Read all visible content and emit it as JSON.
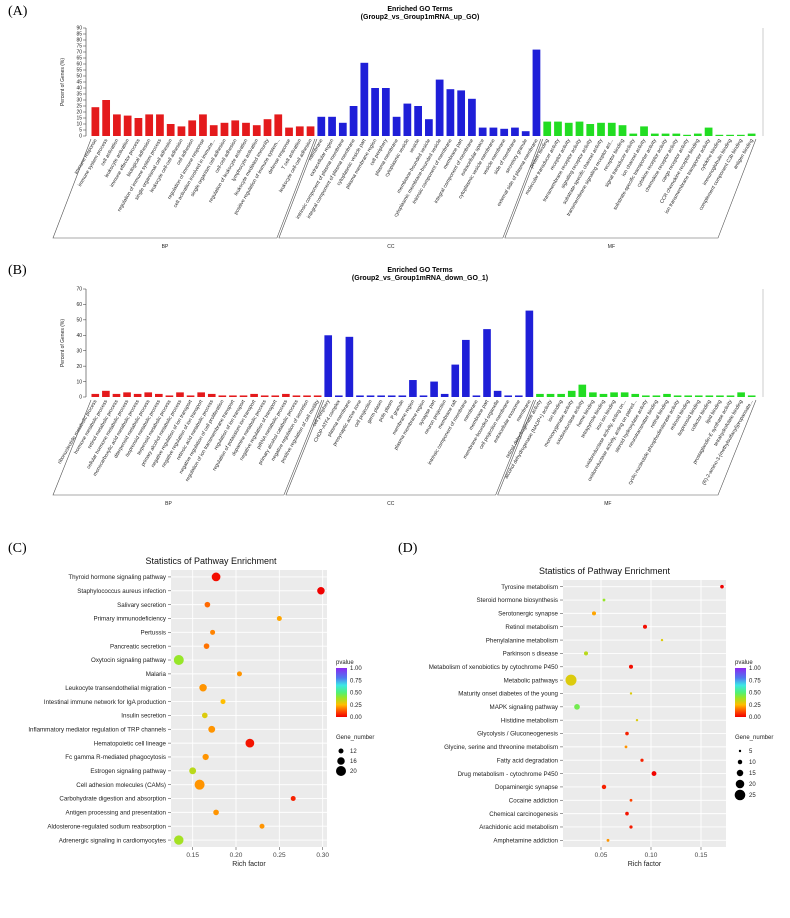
{
  "labels": {
    "a": "(A)",
    "b": "(B)",
    "c": "(C)",
    "d": "(D)"
  },
  "colors": {
    "BP": "#e41a1c",
    "CC": "#1f1fd8",
    "MF": "#22dd22"
  },
  "chart_data": [
    {
      "id": "A",
      "type": "bar",
      "title": "Enriched GO Terms",
      "subtitle": "(Group2_vs_Group1mRNA_up_GO)",
      "ylabel": "Percent of Genes (%)",
      "ylim": [
        0,
        90
      ],
      "yticks": [
        0,
        5,
        10,
        15,
        20,
        25,
        30,
        35,
        40,
        45,
        50,
        55,
        60,
        65,
        70,
        75,
        80,
        85,
        90
      ],
      "groups": [
        {
          "name": "BP",
          "categories": [
            "immune response",
            "immune system process",
            "cell activation",
            "leukocyte activation",
            "immune effector process",
            "biological adhesion",
            "regulation of immune system process",
            "single organismal cell adhesion",
            "leukocyte cell-cell adhesion",
            "cell adhesion",
            "regulation of immune response",
            "cell activation involved in immune...",
            "single organism cell adhesion",
            "cell-cell adhesion",
            "regulation of leukocyte activation",
            "lymphocyte activation",
            "leukocyte mediated immunity",
            "positive regulation of immune system...",
            "defense response",
            "T cell activation",
            "leukocyte cell-cell adhesion"
          ],
          "values": [
            24,
            30,
            18,
            17,
            15,
            18,
            18,
            10,
            8,
            13,
            18,
            9,
            11,
            13,
            11,
            9,
            14,
            18,
            7,
            8,
            8
          ]
        },
        {
          "name": "CC",
          "categories": [
            "membrane",
            "extracellular region",
            "intrinsic component of plasma membrane",
            "integral component of plasma membrane",
            "cytoplasmic vesicle part",
            "plasma membrane region",
            "cell periphery",
            "plasma membrane",
            "cytoplasmic vesicle",
            "vesicle",
            "membrane-bounded vesicle",
            "cytoplasmic membrane-bounded vesicle",
            "intrinsic component of membrane",
            "membrane part",
            "integral component of membrane",
            "extracellular space",
            "cytoplasmic vesicle membrane",
            "vesicle membrane",
            "side of membrane",
            "secretory granule",
            "external side of plasma membrane"
          ],
          "values": [
            16,
            16,
            11,
            25,
            61,
            40,
            40,
            16,
            27,
            25,
            14,
            47,
            39,
            38,
            31,
            7,
            7,
            6,
            7,
            4,
            72
          ]
        },
        {
          "name": "MF",
          "categories": [
            "protein binding",
            "molecular transducer activity",
            "receptor activity",
            "transmembrane receptor activity",
            "signaling receptor activity",
            "substrate-specific channel activity",
            "transmembrane signaling receptor act...",
            "receptor binding",
            "signal transducer activity",
            "ion channel activity",
            "substrate-specific transporter activity",
            "cytokine receptor activity",
            "chemokine receptor activity",
            "cargo receptor activity",
            "CCR chemokine receptor binding",
            "ion transmembrane transporter activity",
            "cytokine binding",
            "immunoglobulin binding",
            "complement component C3b binding",
            "antigen binding"
          ],
          "values": [
            12,
            12,
            11,
            12,
            10,
            11,
            11,
            9,
            2,
            8,
            2,
            2,
            2,
            1,
            2,
            7,
            1,
            1,
            1,
            2
          ]
        }
      ]
    },
    {
      "id": "B",
      "type": "bar",
      "title": "Enriched GO Terms",
      "subtitle": "(Group2_vs_Group1mRNA_down_GO_1)",
      "ylabel": "Percent of Genes (%)",
      "ylim": [
        0,
        70
      ],
      "yticks": [
        0,
        10,
        20,
        30,
        40,
        50,
        60,
        70
      ],
      "groups": [
        {
          "name": "BP",
          "categories": [
            "ribonucleotide metabolic process",
            "hormone metabolic process",
            "retinol metabolic process",
            "cellular hormone metabolic process",
            "monocarboxylic acid metabolic process",
            "diterpenoid metabolic process",
            "isoprenoid metabolic process",
            "terpenoid metabolic process",
            "primary alcohol metabolic process",
            "negative regulation of ion transport",
            "negative regulation of ion transport",
            "retinoic acid metabolic process",
            "negative regulation of cell proliferation",
            "regulation of ion transmembrane transport",
            "regulation of ion transport",
            "regulation of potassium ion transport",
            "dopamine metabolic process",
            "negative regulation of transport",
            "piRNA metabolic process",
            "primary alcohol catabolic process",
            "negative regulation of secretion",
            "positive regulation of cell motility"
          ],
          "values": [
            2,
            4,
            2,
            3,
            2,
            3,
            2,
            1,
            3,
            1,
            3,
            2,
            1,
            1,
            1,
            2,
            1,
            1,
            2,
            1,
            1,
            1
          ]
        },
        {
          "name": "CC",
          "categories": [
            "cell periphery",
            "CHOP-ATF4 complex",
            "plasma membrane",
            "presynaptic active zone",
            "cell projection",
            "germ plasm",
            "pole plasm",
            "P granule",
            "membrane region",
            "plasma membrane region",
            "synapse part",
            "neuron projection",
            "membrane raft",
            "intrinsic component of membrane",
            "membrane",
            "membrane part",
            "membrane-bounded organelle",
            "cell projection membrane",
            "extracellular exosome",
            "membrane"
          ],
          "values": [
            40,
            1,
            39,
            1,
            1,
            1,
            1,
            1,
            11,
            1,
            10,
            2,
            21,
            37,
            1,
            44,
            4,
            1,
            1,
            56
          ]
        },
        {
          "name": "MF",
          "categories": [
            "retinol dehydrogenase activity",
            "alcohol dehydrogenase (NADP+) activity",
            "ion binding",
            "monooxygenase activity",
            "oxidoreductase activity",
            "heme binding",
            "tetrapyrrole binding",
            "iron ion binding",
            "oxidoreductase activity, acting on...",
            "oxidoreductase activity, acting on paired...",
            "steroid hydroxylase activity",
            "neurotransmitter binding",
            "retinal binding",
            "cyclic-nucleotide phosphodiesterase activity",
            "retinoid binding",
            "isoprenoid binding",
            "cofactor binding",
            "lipid binding",
            "prostaglandin-E synthase activity",
            "tetrahydrofolate binding",
            "(R)-2-amino-3-(methylsulfanyl)propanoate..."
          ],
          "values": [
            2,
            2,
            2,
            4,
            8,
            3,
            2,
            3,
            3,
            2,
            1,
            1,
            2,
            1,
            1,
            1,
            1,
            1,
            1,
            3,
            1
          ]
        }
      ]
    },
    {
      "id": "C",
      "type": "scatter",
      "title": "Statistics of Pathway Enrichment",
      "xlabel": "Rich factor",
      "xlim": [
        0.125,
        0.305
      ],
      "xticks": [
        0.15,
        0.2,
        0.25,
        0.3
      ],
      "xticklabels": [
        "0.15",
        "0.20",
        "0.25",
        "0.30"
      ],
      "legend": {
        "color_title": "pvalue",
        "color_ticks": [
          "1.00",
          "0.75",
          "0.50",
          "0.25",
          "0.00"
        ],
        "size_title": "Gene_number",
        "size_ticks": [
          12,
          16,
          20
        ]
      },
      "points": [
        {
          "pathway": "Thyroid hormone signaling pathway",
          "rich": 0.177,
          "p": 0.02,
          "genes": 18
        },
        {
          "pathway": "Staphylococcus aureus infection",
          "rich": 0.298,
          "p": 0.001,
          "genes": 16
        },
        {
          "pathway": "Salivary secretion",
          "rich": 0.167,
          "p": 0.15,
          "genes": 13
        },
        {
          "pathway": "Primary immunodeficiency",
          "rich": 0.25,
          "p": 0.22,
          "genes": 8
        },
        {
          "pathway": "Pertussis",
          "rich": 0.173,
          "p": 0.18,
          "genes": 12
        },
        {
          "pathway": "Pancreatic secretion",
          "rich": 0.166,
          "p": 0.16,
          "genes": 13
        },
        {
          "pathway": "Oxytocin signaling pathway",
          "rich": 0.134,
          "p": 0.4,
          "genes": 20
        },
        {
          "pathway": "Malaria",
          "rich": 0.204,
          "p": 0.2,
          "genes": 10
        },
        {
          "pathway": "Leukocyte transendothelial migration",
          "rich": 0.162,
          "p": 0.2,
          "genes": 16
        },
        {
          "pathway": "Intestinal immune network for IgA production",
          "rich": 0.185,
          "p": 0.25,
          "genes": 8
        },
        {
          "pathway": "Insulin secretion",
          "rich": 0.164,
          "p": 0.3,
          "genes": 13
        },
        {
          "pathway": "Inflammatory mediator regulation of TRP channels",
          "rich": 0.172,
          "p": 0.2,
          "genes": 15
        },
        {
          "pathway": "Hematopoietic cell lineage",
          "rich": 0.216,
          "p": 0.03,
          "genes": 18
        },
        {
          "pathway": "Fc gamma R-mediated phagocytosis",
          "rich": 0.165,
          "p": 0.2,
          "genes": 14
        },
        {
          "pathway": "Estrogen signaling pathway",
          "rich": 0.15,
          "p": 0.35,
          "genes": 15
        },
        {
          "pathway": "Cell adhesion molecules (CAMs)",
          "rich": 0.158,
          "p": 0.2,
          "genes": 20
        },
        {
          "pathway": "Carbohydrate digestion and absorption",
          "rich": 0.266,
          "p": 0.05,
          "genes": 12
        },
        {
          "pathway": "Antigen processing and presentation",
          "rich": 0.177,
          "p": 0.2,
          "genes": 13
        },
        {
          "pathway": "Aldosterone-regulated sodium reabsorption",
          "rich": 0.23,
          "p": 0.2,
          "genes": 8
        },
        {
          "pathway": "Adrenergic signaling in cardiomyocytes",
          "rich": 0.134,
          "p": 0.38,
          "genes": 19
        }
      ]
    },
    {
      "id": "D",
      "type": "scatter",
      "title": "Statistics of Pathway Enrichment",
      "xlabel": "Rich factor",
      "xlim": [
        0.012,
        0.175
      ],
      "xticks": [
        0.05,
        0.1,
        0.15
      ],
      "xticklabels": [
        "0.05",
        "0.10",
        "0.15"
      ],
      "legend": {
        "color_title": "pvalue",
        "color_ticks": [
          "1.00",
          "0.75",
          "0.50",
          "0.25",
          "0.00"
        ],
        "size_title": "Gene_number",
        "size_ticks": [
          5,
          10,
          15,
          20,
          25
        ]
      },
      "points": [
        {
          "pathway": "Tyrosine metabolism",
          "rich": 0.171,
          "p": 0.001,
          "genes": 8
        },
        {
          "pathway": "Steroid hormone biosynthesis",
          "rich": 0.053,
          "p": 0.4,
          "genes": 6
        },
        {
          "pathway": "Serotonergic synapse",
          "rich": 0.043,
          "p": 0.22,
          "genes": 9
        },
        {
          "pathway": "Retinol metabolism",
          "rich": 0.094,
          "p": 0.02,
          "genes": 9
        },
        {
          "pathway": "Phenylalanine metabolism",
          "rich": 0.111,
          "p": 0.3,
          "genes": 4
        },
        {
          "pathway": "Parkinson s disease",
          "rich": 0.035,
          "p": 0.35,
          "genes": 9
        },
        {
          "pathway": "Metabolism of xenobiotics by cytochrome P450",
          "rich": 0.08,
          "p": 0.02,
          "genes": 9
        },
        {
          "pathway": "Metabolic pathways",
          "rich": 0.02,
          "p": 0.3,
          "genes": 26
        },
        {
          "pathway": "Maturity onset diabetes of the young",
          "rich": 0.08,
          "p": 0.3,
          "genes": 4
        },
        {
          "pathway": "MAPK signaling pathway",
          "rich": 0.026,
          "p": 0.45,
          "genes": 13
        },
        {
          "pathway": "Histidine metabolism",
          "rich": 0.086,
          "p": 0.3,
          "genes": 4
        },
        {
          "pathway": "Glycolysis / Gluconeogenesis",
          "rich": 0.076,
          "p": 0.05,
          "genes": 8
        },
        {
          "pathway": "Glycine, serine and threonine metabolism",
          "rich": 0.075,
          "p": 0.2,
          "genes": 6
        },
        {
          "pathway": "Fatty acid degradation",
          "rich": 0.091,
          "p": 0.05,
          "genes": 7
        },
        {
          "pathway": "Drug metabolism - cytochrome P450",
          "rich": 0.103,
          "p": 0.005,
          "genes": 11
        },
        {
          "pathway": "Dopaminergic synapse",
          "rich": 0.053,
          "p": 0.05,
          "genes": 10
        },
        {
          "pathway": "Cocaine addiction",
          "rich": 0.08,
          "p": 0.1,
          "genes": 6
        },
        {
          "pathway": "Chemical carcinogenesis",
          "rich": 0.076,
          "p": 0.03,
          "genes": 8
        },
        {
          "pathway": "Arachidonic acid metabolism",
          "rich": 0.08,
          "p": 0.04,
          "genes": 7
        },
        {
          "pathway": "Amphetamine addiction",
          "rich": 0.057,
          "p": 0.2,
          "genes": 6
        }
      ]
    }
  ]
}
